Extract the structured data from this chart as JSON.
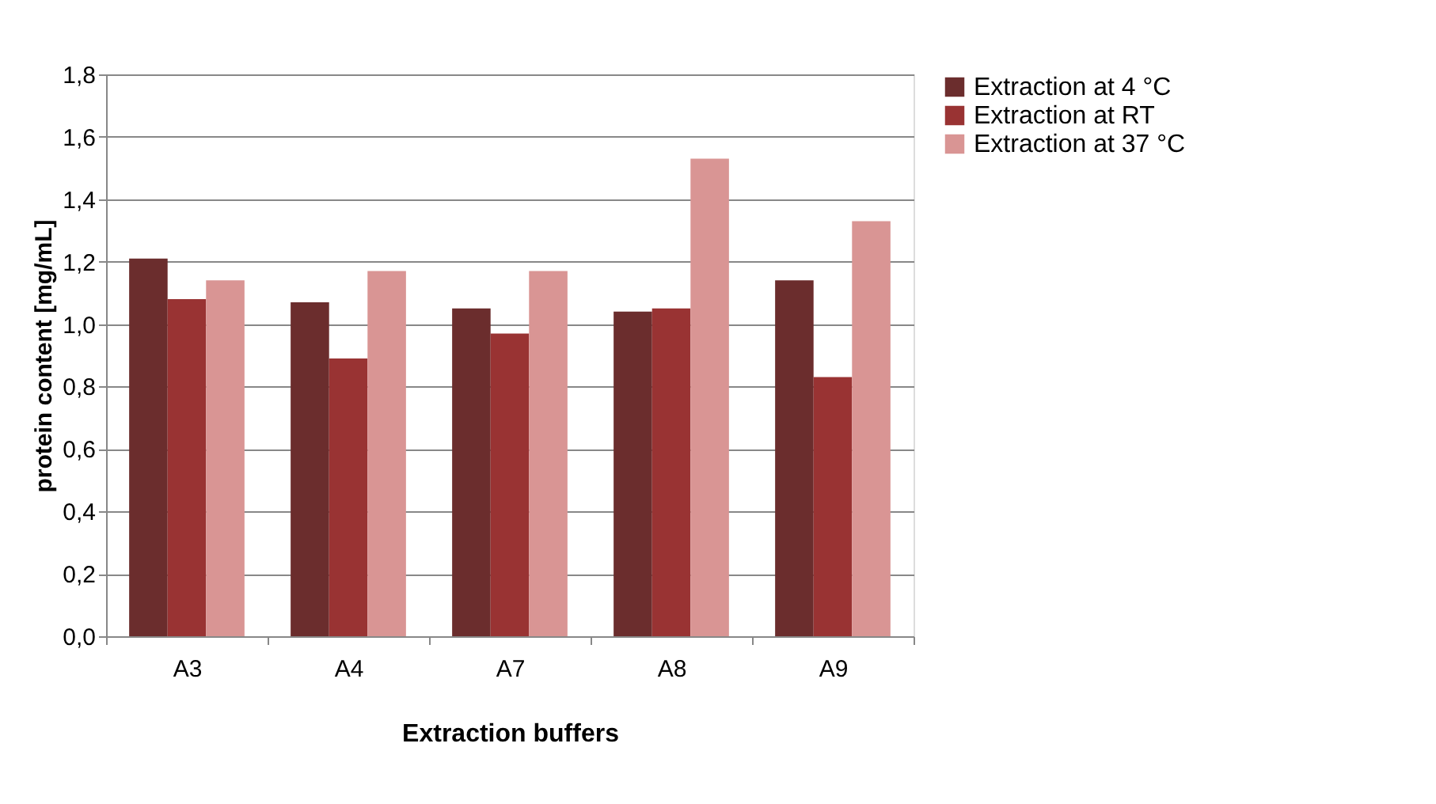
{
  "chart_data": {
    "type": "bar",
    "xlabel": "Extraction buffers",
    "ylabel": "protein content [mg/mL]",
    "categories": [
      "A3",
      "A4",
      "A7",
      "A8",
      "A9"
    ],
    "series": [
      {
        "name": "Extraction at 4 °C",
        "color": "#6b2d2d",
        "values": [
          1.21,
          1.07,
          1.05,
          1.04,
          1.14
        ]
      },
      {
        "name": "Extraction at RT",
        "color": "#993333",
        "values": [
          1.08,
          0.89,
          0.97,
          1.05,
          0.83
        ]
      },
      {
        "name": "Extraction at 37 °C",
        "color": "#d99594",
        "values": [
          1.14,
          1.17,
          1.17,
          1.53,
          1.33
        ]
      }
    ],
    "ylim": [
      0,
      1.8
    ],
    "yticks": [
      {
        "value": 0,
        "label": "0,0"
      },
      {
        "value": 0.2,
        "label": "0,2"
      },
      {
        "value": 0.4,
        "label": "0,4"
      },
      {
        "value": 0.6,
        "label": "0,6"
      },
      {
        "value": 0.8,
        "label": "0,8"
      },
      {
        "value": 1.0,
        "label": "1,0"
      },
      {
        "value": 1.2,
        "label": "1,2"
      },
      {
        "value": 1.4,
        "label": "1,4"
      },
      {
        "value": 1.6,
        "label": "1,6"
      },
      {
        "value": 1.8,
        "label": "1,8"
      }
    ],
    "grid": "y",
    "legend": "right"
  }
}
